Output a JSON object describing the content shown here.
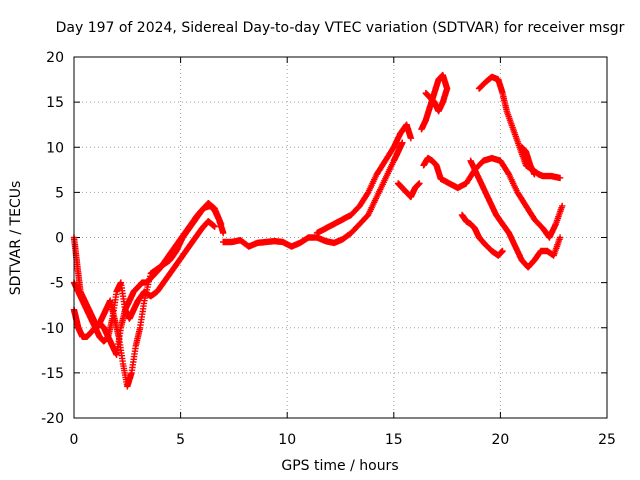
{
  "chart_data": {
    "type": "scatter",
    "title": "Day 197 of 2024, Sidereal Day-to-day VTEC variation (SDTVAR) for receiver msgr",
    "xlabel": "GPS time / hours",
    "ylabel": "SDTVAR / TECUs",
    "xlim": [
      0,
      25
    ],
    "ylim": [
      -20,
      20
    ],
    "xticks": [
      "0",
      "5",
      "10",
      "15",
      "20",
      "25"
    ],
    "yticks": [
      "20",
      "15",
      "10",
      "5",
      "0",
      "-5",
      "-10",
      "-15",
      "-20"
    ],
    "grid": true,
    "marker": "plus",
    "color": "#ff0000",
    "series": [
      {
        "x": [
          0.0,
          0.1,
          0.2,
          0.3,
          0.4,
          0.6,
          0.8,
          1.0,
          1.2,
          1.4,
          1.6,
          1.8,
          2.0,
          2.2,
          2.4,
          2.6,
          2.8,
          3.0,
          3.2,
          3.4,
          3.6,
          3.8,
          4.0,
          4.3,
          4.6,
          4.9,
          5.2,
          5.5,
          5.8,
          6.1,
          6.4,
          6.6,
          6.8,
          7.0
        ],
        "y": [
          -8,
          -9,
          -10,
          -10.5,
          -11,
          -11,
          -10.5,
          -10,
          -9.5,
          -10,
          -11,
          -12,
          -13,
          -10,
          -8,
          -7,
          -6,
          -5.5,
          -5,
          -5,
          -4.5,
          -4,
          -3.5,
          -2.5,
          -1.5,
          -0.5,
          0.5,
          1.5,
          2.5,
          3.3,
          3.5,
          3,
          2,
          0.5
        ]
      },
      {
        "x": [
          0.0,
          0.1,
          0.2,
          0.3,
          0.5,
          0.7,
          0.9,
          1.1,
          1.3,
          1.5,
          1.7,
          1.9,
          2.1,
          2.3,
          2.5,
          2.7,
          2.9,
          3.1,
          3.3,
          3.6,
          3.9,
          4.2,
          4.5,
          4.8,
          5.1,
          5.4,
          5.7,
          6.0,
          6.3,
          6.6,
          6.9
        ],
        "y": [
          0,
          -2,
          -4,
          -6,
          -7,
          -8,
          -9,
          -10,
          -9,
          -8,
          -7,
          -9,
          -11,
          -14,
          -16.5,
          -15,
          -12,
          -10,
          -7,
          -4,
          -3.5,
          -3,
          -2.5,
          -1.5,
          0,
          1,
          2,
          3,
          3.8,
          3.2,
          1.5
        ]
      },
      {
        "x": [
          0.0,
          0.2,
          0.4,
          0.6,
          0.8,
          1.0,
          1.2,
          1.4,
          1.6,
          1.8,
          2.0,
          2.2,
          2.4,
          2.6,
          2.8,
          3.0,
          3.3,
          3.6,
          3.9,
          4.2,
          4.5,
          4.8,
          5.1,
          5.4,
          5.7,
          6.0,
          6.3,
          6.6
        ],
        "y": [
          -5,
          -6,
          -7,
          -8,
          -9,
          -10,
          -11,
          -11.5,
          -11,
          -9,
          -6,
          -5,
          -8,
          -9,
          -8,
          -7,
          -6,
          -6.5,
          -6,
          -5,
          -4,
          -3,
          -2,
          -1,
          0,
          1,
          1.8,
          1.2
        ]
      },
      {
        "x": [
          7.0,
          7.4,
          7.8,
          8.2,
          8.6,
          9.0,
          9.4,
          9.8,
          10.2,
          10.6,
          11.0,
          11.4,
          11.8,
          12.2,
          12.6,
          13.0,
          13.4,
          13.8,
          14.2,
          14.6,
          15.0,
          15.2,
          15.4
        ],
        "y": [
          -0.5,
          -0.5,
          -0.3,
          -1,
          -0.6,
          -0.5,
          -0.4,
          -0.5,
          -1,
          -0.6,
          0,
          0,
          -0.4,
          -0.6,
          -0.2,
          0.5,
          1.5,
          2.5,
          4.5,
          6.5,
          8.5,
          9.5,
          10.5
        ]
      },
      {
        "x": [
          11.4,
          11.8,
          12.2,
          12.6,
          13.0,
          13.4,
          13.8,
          14.2,
          14.6,
          15.0,
          15.3,
          15.6,
          15.8
        ],
        "y": [
          0.5,
          1,
          1.5,
          2,
          2.5,
          3.5,
          5,
          7,
          8.5,
          10,
          11.5,
          12.5,
          11
        ]
      },
      {
        "x": [
          15.2,
          15.4,
          15.6,
          15.8,
          16.0,
          16.2
        ],
        "y": [
          6,
          5.5,
          5,
          4.5,
          5.5,
          6
        ]
      },
      {
        "x": [
          16.3,
          16.5,
          16.7,
          16.9,
          17.1,
          17.3,
          17.5,
          17.3,
          17.1,
          16.9,
          16.7,
          16.5
        ],
        "y": [
          12,
          13,
          14.5,
          16,
          17.5,
          18,
          16.5,
          15,
          14,
          15,
          15.5,
          16
        ]
      },
      {
        "x": [
          16.4,
          16.6,
          16.8,
          17.0,
          17.2,
          17.6,
          18.0,
          18.4,
          18.8,
          19.2,
          19.6,
          20.0,
          20.4,
          20.8,
          21.2,
          21.6,
          22.0,
          22.3,
          22.6,
          22.9
        ],
        "y": [
          8,
          8.8,
          8.5,
          8,
          6.5,
          6,
          5.5,
          6,
          7.5,
          8.5,
          8.8,
          8.5,
          7,
          5,
          3.5,
          2,
          1,
          0,
          1.5,
          3.5
        ]
      },
      {
        "x": [
          18.2,
          18.4,
          18.6,
          18.8,
          19.0,
          19.3,
          19.6,
          19.9,
          20.1
        ],
        "y": [
          2.5,
          1.8,
          1.5,
          1.0,
          0,
          -0.8,
          -1.5,
          -2.0,
          -1.5
        ]
      },
      {
        "x": [
          19.0,
          19.3,
          19.6,
          19.9,
          20.1,
          20.3,
          20.6,
          20.9,
          21.2,
          21.5,
          21.8,
          22.0,
          22.4,
          22.8
        ],
        "y": [
          16.5,
          17.2,
          17.8,
          17.5,
          16,
          14,
          12,
          10,
          8,
          7.5,
          7,
          6.8,
          6.8,
          6.6
        ]
      },
      {
        "x": [
          18.6,
          18.9,
          19.2,
          19.5,
          19.8,
          20.1,
          20.4,
          20.7,
          21.0,
          21.3,
          21.6,
          21.9,
          22.2,
          22.5,
          22.8
        ],
        "y": [
          8.5,
          7,
          5.5,
          4,
          2.5,
          1.5,
          0.5,
          -1,
          -2.5,
          -3.3,
          -2.5,
          -1.5,
          -1.5,
          -2,
          0
        ]
      },
      {
        "x": [
          21.0,
          21.2,
          21.4,
          21.6
        ],
        "y": [
          10,
          9.5,
          8,
          7
        ]
      }
    ]
  }
}
